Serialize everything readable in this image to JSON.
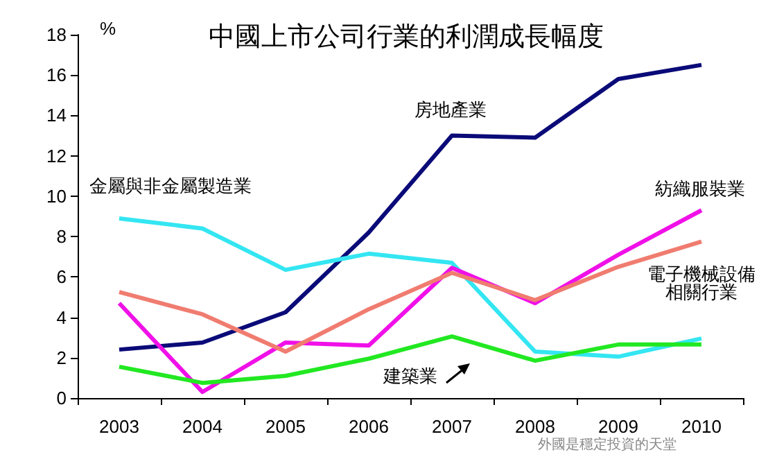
{
  "chart_data": {
    "type": "line",
    "title": "中國上市公司行業的利潤成長幅度",
    "ylabel": "%",
    "categories": [
      "2003",
      "2004",
      "2005",
      "2006",
      "2007",
      "2008",
      "2009",
      "2010"
    ],
    "series": [
      {
        "name": "房地產業",
        "color": "#0a0a78",
        "values": [
          2.4,
          2.75,
          4.25,
          8.2,
          13.0,
          12.9,
          15.8,
          16.5
        ]
      },
      {
        "name": "金屬與非金屬製造業",
        "color": "#33e6f2",
        "values": [
          8.9,
          8.4,
          6.35,
          7.15,
          6.7,
          2.3,
          2.05,
          2.95
        ]
      },
      {
        "name": "紡織服裝業",
        "color": "#f010e8",
        "values": [
          4.7,
          0.3,
          2.75,
          2.6,
          6.45,
          4.7,
          7.1,
          9.3
        ]
      },
      {
        "name": "電子機械設備相關行業",
        "color": "#f07c70",
        "values": [
          5.25,
          4.15,
          2.3,
          4.4,
          6.2,
          4.85,
          6.5,
          7.75
        ]
      },
      {
        "name": "建築業",
        "color": "#22e822",
        "values": [
          1.55,
          0.75,
          1.1,
          1.95,
          3.05,
          1.85,
          2.65,
          2.65
        ]
      }
    ],
    "ylim": [
      0,
      18
    ],
    "yticks": [
      0,
      2,
      4,
      6,
      8,
      10,
      12,
      14,
      16,
      18
    ],
    "grid": false,
    "legend": false,
    "marker": "none",
    "line_style": "solid",
    "annotations": [
      "外國是穩定投資的天堂"
    ]
  }
}
